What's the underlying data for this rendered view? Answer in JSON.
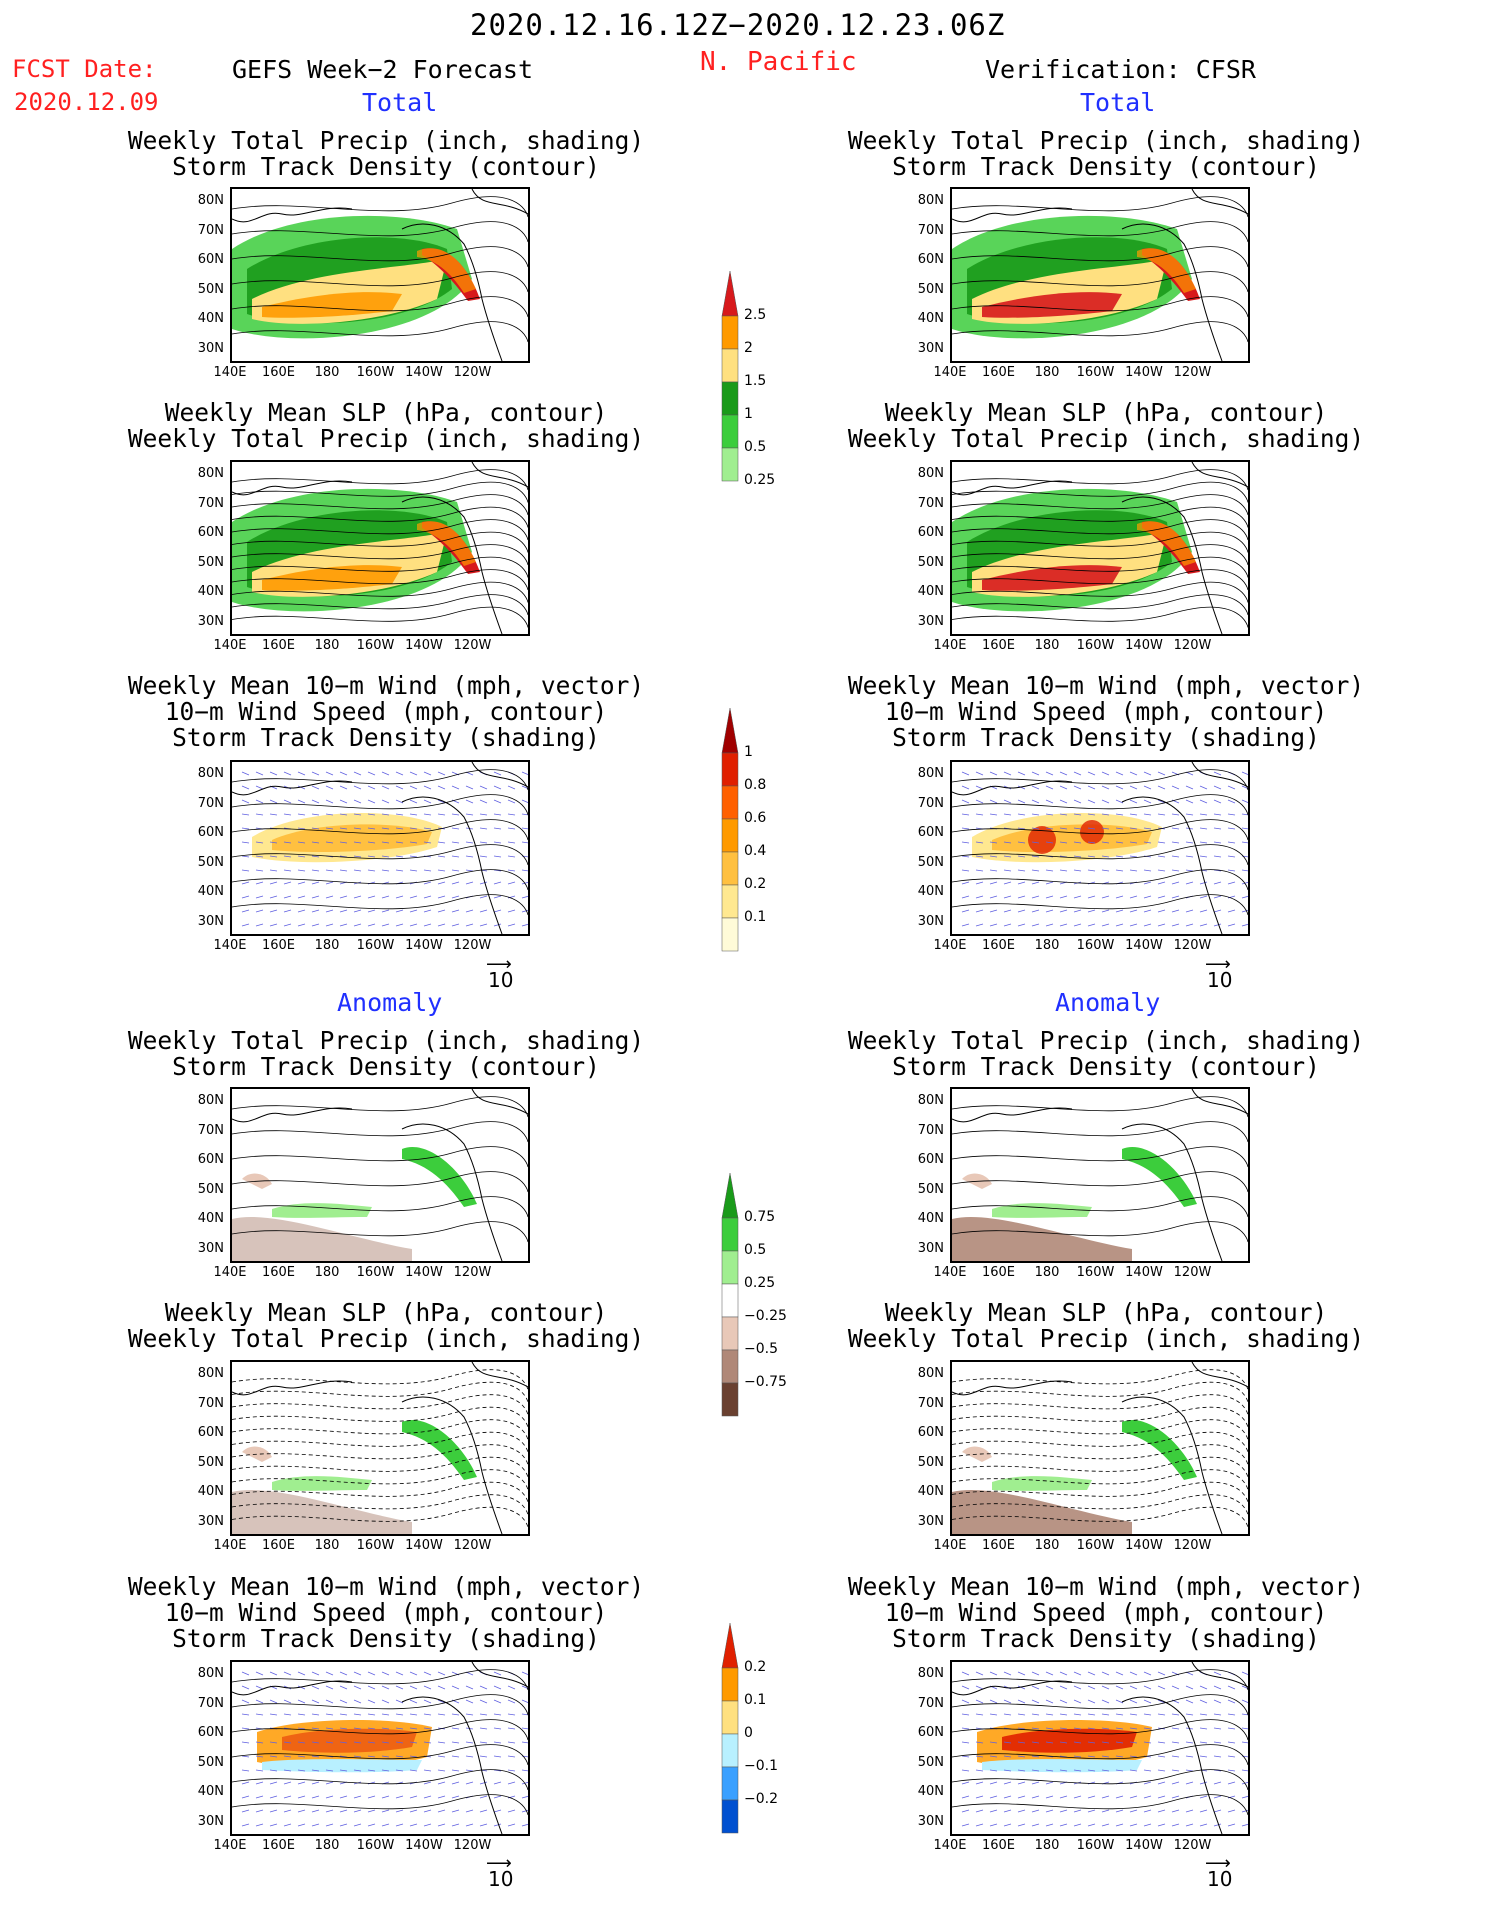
{
  "header": {
    "valid_range": "2020.12.16.12Z−2020.12.23.06Z",
    "fcst_label": "FCST Date:",
    "fcst_date": "2020.12.09",
    "left_title": "GEFS Week−2 Forecast",
    "region": "N. Pacific",
    "right_title": "Verification: CFSR"
  },
  "sections": {
    "total": "Total",
    "anomaly": "Anomaly"
  },
  "titles": {
    "precip_track": "Weekly Total Precip (inch, shading)\nStorm Track Density (contour)",
    "slp_precip": "Weekly Mean SLP (hPa, contour)\nWeekly Total Precip (inch, shading)",
    "wind_track": "Weekly Mean 10−m Wind (mph, vector)\n10−m Wind Speed (mph, contour)\nStorm Track Density (shading)"
  },
  "axes": {
    "lat_labels": [
      "80N",
      "70N",
      "60N",
      "50N",
      "40N",
      "30N"
    ],
    "lon_labels": [
      "140E",
      "160E",
      "180",
      "160W",
      "140W",
      "120W"
    ]
  },
  "vector_reference": "10",
  "colorbars": {
    "precip_total": {
      "labels": [
        "2.5",
        "2",
        "1.5",
        "1",
        "0.5",
        "0.25"
      ],
      "colors": [
        "#d7191c",
        "#ff9a00",
        "#ffe080",
        "#1a9a1a",
        "#3ccd3c",
        "#a0ee90"
      ]
    },
    "track_total": {
      "labels": [
        "1",
        "0.8",
        "0.6",
        "0.4",
        "0.2",
        "0.1"
      ],
      "colors": [
        "#a00000",
        "#e02000",
        "#ff6000",
        "#ff9a00",
        "#ffc040",
        "#ffe890",
        "#fffbd8"
      ]
    },
    "precip_anom": {
      "labels": [
        "0.75",
        "0.5",
        "0.25",
        "−0.25",
        "−0.5",
        "−0.75"
      ],
      "colors": [
        "#1a9a1a",
        "#3ccd3c",
        "#a0ee90",
        "#ffffff",
        "#e8c8b8",
        "#b08878",
        "#6a4030"
      ]
    },
    "track_anom": {
      "labels": [
        "0.2",
        "0.1",
        "0",
        "−0.1",
        "−0.2"
      ],
      "colors": [
        "#e02000",
        "#ff9a00",
        "#ffe080",
        "#b8f0ff",
        "#3aa0ff",
        "#0050d0"
      ]
    }
  }
}
